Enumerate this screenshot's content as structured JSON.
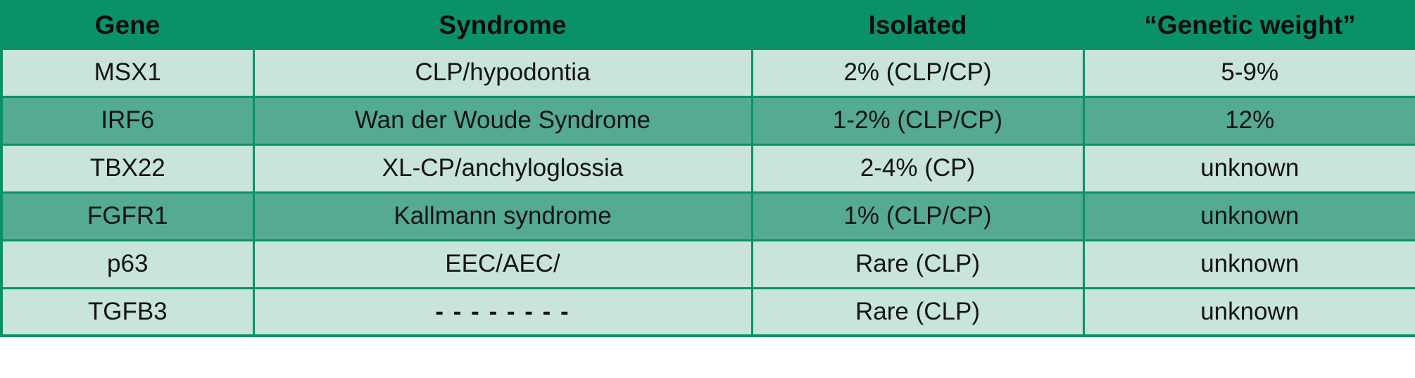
{
  "chart_data": {
    "type": "table",
    "columns": [
      "Gene",
      "Syndrome",
      "Isolated",
      "“Genetic weight”"
    ],
    "rows": [
      {
        "variant": "light",
        "cells": [
          "MSX1",
          "CLP/hypodontia",
          "2% (CLP/CP)",
          "5-9%"
        ]
      },
      {
        "variant": "medium",
        "cells": [
          "IRF6",
          "Wan der Woude Syndrome",
          "1-2% (CLP/CP)",
          "12%"
        ]
      },
      {
        "variant": "light",
        "cells": [
          "TBX22",
          "XL-CP/anchyloglossia",
          "2-4% (CP)",
          "unknown"
        ]
      },
      {
        "variant": "medium",
        "cells": [
          "FGFR1",
          "Kallmann syndrome",
          "1% (CLP/CP)",
          "unknown"
        ]
      },
      {
        "variant": "light",
        "cells": [
          "p63",
          "EEC/AEC/",
          "Rare (CLP)",
          "unknown"
        ]
      },
      {
        "variant": "light",
        "cells": [
          "TGFB3",
          "- - - - - - - -",
          "Rare (CLP)",
          "unknown"
        ]
      }
    ],
    "layout_hints": {
      "header_position": "top",
      "grid": true,
      "row_striping": [
        "light",
        "medium",
        "light",
        "medium",
        "light",
        "light"
      ]
    }
  },
  "colors": {
    "header_background": "#0a9169",
    "row_light": "#c9e4da",
    "row_medium": "#55ab92",
    "border": "#0a9169",
    "text": "#141414"
  }
}
